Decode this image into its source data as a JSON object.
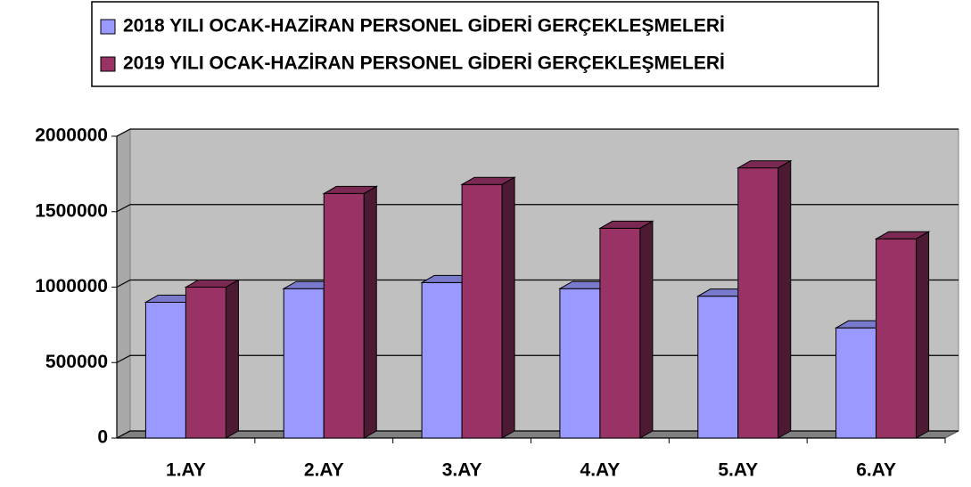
{
  "chart_data": {
    "type": "bar3d",
    "categories": [
      "1.AY",
      "2.AY",
      "3.AY",
      "4.AY",
      "5.AY",
      "6.AY"
    ],
    "series": [
      {
        "name": "2018 YILI OCAK-HAZİRAN PERSONEL GİDERİ GERÇEKLEŞMELERİ",
        "color": "#9999ff",
        "values": [
          900000,
          990000,
          1030000,
          990000,
          940000,
          730000
        ]
      },
      {
        "name": "2019 YILI OCAK-HAZİRAN PERSONEL GİDERİ GERÇEKLEŞMELERİ",
        "color": "#993366",
        "values": [
          1000000,
          1620000,
          1680000,
          1390000,
          1790000,
          1320000
        ]
      }
    ],
    "ylim": [
      0,
      2000000
    ],
    "yticks": [
      0,
      500000,
      1000000,
      1500000,
      2000000
    ],
    "grid": true
  }
}
